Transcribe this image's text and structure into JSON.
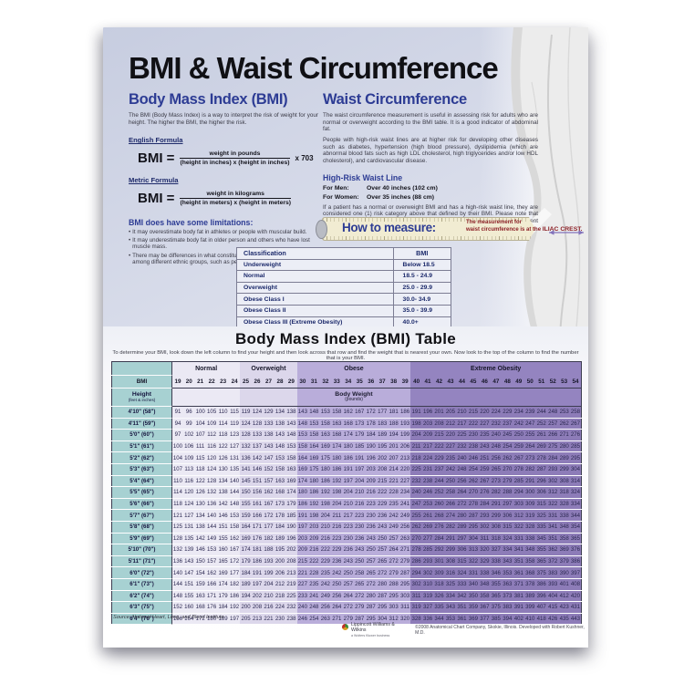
{
  "page": {
    "title": "BMI & Waist Circumference"
  },
  "bmi_section": {
    "heading": "Body Mass Index (BMI)",
    "intro": "The BMI (Body Mass Index) is a way to interpret the risk of weight for your height. The higher the BMI, the higher the risk.",
    "english_formula_label": "English Formula",
    "english_formula": {
      "lhs": "BMI =",
      "numerator": "weight in pounds",
      "denominator": "(height in inches) x (height in inches)",
      "multiplier": "x 703"
    },
    "metric_formula_label": "Metric Formula",
    "metric_formula": {
      "lhs": "BMI =",
      "numerator": "weight in kilograms",
      "denominator": "(height in meters) x (height in meters)"
    },
    "limitations_heading": "BMI does have some limitations:",
    "bullets": [
      "It may overestimate body fat in athletes or people with muscular build.",
      "It may underestimate body fat in older person and others who have lost muscle mass.",
      "There may be differences in what constitutes healthy and unhealthy BMIs among different ethnic groups, such as people of Asian descent."
    ],
    "bullet_glyph": "•"
  },
  "waist_section": {
    "heading": "Waist Circumference",
    "para1": "The waist circumference measurement is useful in assessing risk for adults who are normal or overweight according to the BMI table. It is a good indicator of abdominal fat.",
    "para2": "People with high-risk waist lines are at higher risk for developing other diseases such as diabetes, hypertension (high blood pressure), dyslipidemia (which are abnormal blood fats such as high LDL cholesterol, high triglycerides and/or low HDL cholesterol), and cardiovascular disease.",
    "high_risk_heading": "High-Risk Waist Line",
    "men_label": "For Men:",
    "men_value": "Over 40 inches (102 cm)",
    "women_label": "For Women:",
    "women_value": "Over 35 inches (88 cm)",
    "para3": "If a patient has a normal or overweight BMI and has a high-risk waist line, they are considered one (1) risk category above that defined by their BMI. Please note that there may be differences in what constitutes a higher risk waist line among different ethnic groups."
  },
  "how_to_measure": {
    "label": "How to measure:",
    "note_line1": "The measurement for",
    "note_line2": "waist circumference is at the",
    "highlight": "ILIAC CREST."
  },
  "classification_table": {
    "col_classification": "Classification",
    "col_bmi": "BMI",
    "rows": [
      [
        "Underweight",
        "Below 18.5"
      ],
      [
        "Normal",
        "18.5 - 24.9"
      ],
      [
        "Overweight",
        "25.0 - 29.9"
      ],
      [
        "Obese Class I",
        "30.0- 34.9"
      ],
      [
        "Obese Class II",
        "35.0 - 39.9"
      ],
      [
        "Obese Class III (Extreme Obesity)",
        "40.0+"
      ]
    ]
  },
  "bmi_table": {
    "title": "Body Mass Index (BMI) Table",
    "instructions": "To determine your BMI, look down the left column to find your height and then look across that row and find the weight that is nearest your own. Now look to the top of the column to find the number that is your BMI.",
    "corner_label": "BMI",
    "height_label": "Height",
    "height_sublabel": "(feet & inches)",
    "weight_label": "Body Weight",
    "weight_sublabel": "(pounds)",
    "categories": [
      {
        "label": "Normal",
        "span": 6
      },
      {
        "label": "Overweight",
        "span": 5
      },
      {
        "label": "Obese",
        "span": 10
      },
      {
        "label": "Extreme Obesity",
        "span": 15
      }
    ],
    "bmi_values": [
      19,
      20,
      21,
      22,
      23,
      24,
      25,
      26,
      27,
      28,
      29,
      30,
      31,
      32,
      33,
      34,
      35,
      36,
      37,
      38,
      39,
      40,
      41,
      42,
      43,
      44,
      45,
      46,
      47,
      48,
      49,
      50,
      51,
      52,
      53,
      54
    ],
    "rows": [
      {
        "height": "4'10\" (58\")",
        "values": [
          91,
          96,
          100,
          105,
          110,
          115,
          119,
          124,
          129,
          134,
          138,
          143,
          148,
          153,
          158,
          162,
          167,
          172,
          177,
          181,
          186,
          191,
          196,
          201,
          205,
          210,
          215,
          220,
          224,
          229,
          234,
          239,
          244,
          248,
          253,
          258
        ]
      },
      {
        "height": "4'11\" (59\")",
        "values": [
          94,
          99,
          104,
          109,
          114,
          119,
          124,
          128,
          133,
          138,
          143,
          148,
          153,
          158,
          163,
          168,
          173,
          178,
          183,
          188,
          193,
          198,
          203,
          208,
          212,
          217,
          222,
          227,
          232,
          237,
          242,
          247,
          252,
          257,
          262,
          267
        ]
      },
      {
        "height": "5'0\" (60\")",
        "values": [
          97,
          102,
          107,
          112,
          118,
          123,
          128,
          133,
          138,
          143,
          148,
          153,
          158,
          163,
          168,
          174,
          179,
          184,
          189,
          194,
          199,
          204,
          209,
          215,
          220,
          225,
          230,
          235,
          240,
          245,
          250,
          255,
          261,
          266,
          271,
          276
        ]
      },
      {
        "height": "5'1\" (61\")",
        "values": [
          100,
          106,
          111,
          116,
          122,
          127,
          132,
          137,
          143,
          148,
          153,
          158,
          164,
          169,
          174,
          180,
          185,
          190,
          195,
          201,
          206,
          211,
          217,
          222,
          227,
          232,
          238,
          243,
          248,
          254,
          259,
          264,
          269,
          275,
          280,
          285
        ]
      },
      {
        "height": "5'2\" (62\")",
        "values": [
          104,
          109,
          115,
          120,
          126,
          131,
          136,
          142,
          147,
          153,
          158,
          164,
          169,
          175,
          180,
          186,
          191,
          196,
          202,
          207,
          213,
          218,
          224,
          229,
          235,
          240,
          246,
          251,
          256,
          262,
          267,
          273,
          278,
          284,
          289,
          295
        ]
      },
      {
        "height": "5'3\" (63\")",
        "values": [
          107,
          113,
          118,
          124,
          130,
          135,
          141,
          146,
          152,
          158,
          163,
          169,
          175,
          180,
          186,
          191,
          197,
          203,
          208,
          214,
          220,
          225,
          231,
          237,
          242,
          248,
          254,
          259,
          265,
          270,
          278,
          282,
          287,
          293,
          299,
          304
        ]
      },
      {
        "height": "5'4\" (64\")",
        "values": [
          110,
          116,
          122,
          128,
          134,
          140,
          145,
          151,
          157,
          163,
          169,
          174,
          180,
          186,
          192,
          197,
          204,
          209,
          215,
          221,
          227,
          232,
          238,
          244,
          250,
          256,
          262,
          267,
          273,
          279,
          285,
          291,
          296,
          302,
          308,
          314
        ]
      },
      {
        "height": "5'5\" (65\")",
        "values": [
          114,
          120,
          126,
          132,
          138,
          144,
          150,
          156,
          162,
          168,
          174,
          180,
          186,
          192,
          198,
          204,
          210,
          216,
          222,
          228,
          234,
          240,
          246,
          252,
          258,
          264,
          270,
          276,
          282,
          288,
          294,
          300,
          306,
          312,
          318,
          324
        ]
      },
      {
        "height": "5'6\" (66\")",
        "values": [
          118,
          124,
          130,
          136,
          142,
          148,
          155,
          161,
          167,
          173,
          179,
          186,
          192,
          198,
          204,
          210,
          216,
          223,
          229,
          235,
          241,
          247,
          253,
          260,
          266,
          272,
          278,
          284,
          291,
          297,
          303,
          309,
          315,
          322,
          328,
          334
        ]
      },
      {
        "height": "5'7\" (67\")",
        "values": [
          121,
          127,
          134,
          140,
          146,
          153,
          159,
          166,
          172,
          178,
          185,
          191,
          198,
          204,
          211,
          217,
          223,
          230,
          236,
          242,
          249,
          255,
          261,
          268,
          274,
          280,
          287,
          293,
          299,
          306,
          312,
          319,
          325,
          331,
          338,
          344
        ]
      },
      {
        "height": "5'8\" (68\")",
        "values": [
          125,
          131,
          138,
          144,
          151,
          158,
          164,
          171,
          177,
          184,
          190,
          197,
          203,
          210,
          216,
          223,
          230,
          236,
          243,
          249,
          256,
          262,
          269,
          276,
          282,
          289,
          295,
          302,
          308,
          315,
          322,
          328,
          335,
          341,
          348,
          354
        ]
      },
      {
        "height": "5'9\" (69\")",
        "values": [
          128,
          135,
          142,
          149,
          155,
          162,
          169,
          176,
          182,
          189,
          196,
          203,
          209,
          216,
          223,
          230,
          236,
          243,
          250,
          257,
          263,
          270,
          277,
          284,
          291,
          297,
          304,
          311,
          318,
          324,
          331,
          338,
          345,
          351,
          358,
          365
        ]
      },
      {
        "height": "5'10\" (70\")",
        "values": [
          132,
          139,
          146,
          153,
          160,
          167,
          174,
          181,
          188,
          195,
          202,
          209,
          216,
          222,
          229,
          236,
          243,
          250,
          257,
          264,
          271,
          278,
          285,
          292,
          299,
          306,
          313,
          320,
          327,
          334,
          341,
          348,
          355,
          362,
          369,
          376
        ]
      },
      {
        "height": "5'11\" (71\")",
        "values": [
          136,
          143,
          150,
          157,
          165,
          172,
          179,
          186,
          193,
          200,
          208,
          215,
          222,
          229,
          236,
          243,
          250,
          257,
          265,
          272,
          279,
          286,
          293,
          301,
          308,
          315,
          322,
          329,
          338,
          343,
          351,
          358,
          365,
          372,
          379,
          386
        ]
      },
      {
        "height": "6'0\" (72\")",
        "values": [
          140,
          147,
          154,
          162,
          169,
          177,
          184,
          191,
          199,
          206,
          213,
          221,
          228,
          235,
          242,
          250,
          258,
          265,
          272,
          279,
          287,
          294,
          302,
          309,
          316,
          324,
          331,
          338,
          346,
          353,
          361,
          368,
          375,
          383,
          390,
          397
        ]
      },
      {
        "height": "6'1\" (73\")",
        "values": [
          144,
          151,
          159,
          166,
          174,
          182,
          189,
          197,
          204,
          212,
          219,
          227,
          235,
          242,
          250,
          257,
          265,
          272,
          280,
          288,
          295,
          302,
          310,
          318,
          325,
          333,
          340,
          348,
          355,
          363,
          371,
          378,
          386,
          393,
          401,
          408
        ]
      },
      {
        "height": "6'2\" (74\")",
        "values": [
          148,
          155,
          163,
          171,
          179,
          186,
          194,
          202,
          210,
          218,
          225,
          233,
          241,
          249,
          256,
          264,
          272,
          280,
          287,
          295,
          303,
          311,
          319,
          326,
          334,
          342,
          350,
          358,
          365,
          373,
          381,
          389,
          396,
          404,
          412,
          420
        ]
      },
      {
        "height": "6'3\" (75\")",
        "values": [
          152,
          160,
          168,
          176,
          184,
          192,
          200,
          208,
          216,
          224,
          232,
          240,
          248,
          256,
          264,
          272,
          279,
          287,
          295,
          303,
          311,
          319,
          327,
          335,
          343,
          351,
          359,
          367,
          375,
          383,
          391,
          399,
          407,
          415,
          423,
          431
        ]
      },
      {
        "height": "6'4\" (76\")",
        "values": [
          156,
          164,
          172,
          180,
          189,
          197,
          205,
          213,
          221,
          230,
          238,
          246,
          254,
          263,
          271,
          279,
          287,
          295,
          304,
          312,
          320,
          328,
          336,
          344,
          353,
          361,
          369,
          377,
          385,
          394,
          402,
          410,
          418,
          426,
          435,
          443
        ]
      }
    ],
    "source": "Source: National Heart, Lung, and Blood Institute"
  },
  "footer": {
    "publisher": "Lippincott Williams & Wilkins",
    "publisher_sub": "a Wolters Kluwer business",
    "copyright": "©2008 Anatomical Chart Company, Skokie, Illinois. Developed with Robert Kushner, M.D."
  },
  "colors": {
    "heading_blue": "#2d3c94",
    "dark_red": "#8c2026",
    "teal_column": "#a7d1d2",
    "normal_bg": "#ebe9f4",
    "overweight_bg": "#dcd7eb",
    "obese_bg": "#b9adda",
    "extreme_bg": "#8d7cb8",
    "arrow_purple": "#8272bb"
  }
}
